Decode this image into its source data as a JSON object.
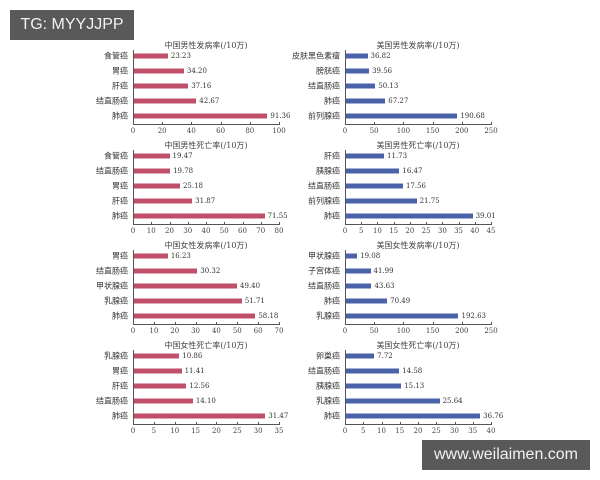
{
  "watermarks": {
    "top_left": "TG: MYYJJPP",
    "bottom_right": "www.weilaimen.com"
  },
  "colors": {
    "china_bar": "#c0506a",
    "us_bar": "#4a62a8"
  },
  "chart_data": [
    {
      "type": "bar",
      "orientation": "horizontal",
      "title": "中国男性发病率(/10万)",
      "categories": [
        "食管癌",
        "胃癌",
        "肝癌",
        "结直肠癌",
        "肺癌"
      ],
      "values": [
        23.23,
        34.2,
        37.16,
        42.67,
        91.36
      ],
      "value_labels": [
        "23.23",
        "34.20",
        "37.16",
        "42.67",
        "91.36"
      ],
      "xlim": [
        0,
        100
      ],
      "xticks": [
        "0",
        "20",
        "40",
        "60",
        "80",
        "100"
      ],
      "color": "#c0506a"
    },
    {
      "type": "bar",
      "orientation": "horizontal",
      "title": "美国男性发病率(/10万)",
      "categories": [
        "皮肤黑色素瘤",
        "膀胱癌",
        "结直肠癌",
        "肺癌",
        "前列腺癌"
      ],
      "values": [
        36.82,
        39.56,
        50.13,
        67.27,
        190.68
      ],
      "value_labels": [
        "36.82",
        "39.56",
        "50.13",
        "67.27",
        "190.68"
      ],
      "xlim": [
        0,
        250
      ],
      "xticks": [
        "0",
        "50",
        "100",
        "150",
        "200",
        "250"
      ],
      "color": "#4a62a8"
    },
    {
      "type": "bar",
      "orientation": "horizontal",
      "title": "中国男性死亡率(/10万)",
      "categories": [
        "食管癌",
        "结直肠癌",
        "胃癌",
        "肝癌",
        "肺癌"
      ],
      "values": [
        19.47,
        19.78,
        25.18,
        31.87,
        71.55
      ],
      "value_labels": [
        "19.47",
        "19.78",
        "25.18",
        "31.87",
        "71.55"
      ],
      "xlim": [
        0,
        80
      ],
      "xticks": [
        "0",
        "10",
        "20",
        "30",
        "40",
        "50",
        "60",
        "70",
        "80"
      ],
      "color": "#c0506a"
    },
    {
      "type": "bar",
      "orientation": "horizontal",
      "title": "美国男性死亡率(/10万)",
      "categories": [
        "肝癌",
        "胰腺癌",
        "结直肠癌",
        "前列腺癌",
        "肺癌"
      ],
      "values": [
        11.73,
        16.47,
        17.56,
        21.75,
        39.01
      ],
      "value_labels": [
        "11.73",
        "16.47",
        "17.56",
        "21.75",
        "39.01"
      ],
      "xlim": [
        0,
        45
      ],
      "xticks": [
        "0",
        "5",
        "10",
        "15",
        "20",
        "25",
        "30",
        "35",
        "40",
        "45"
      ],
      "color": "#4a62a8"
    },
    {
      "type": "bar",
      "orientation": "horizontal",
      "title": "中国女性发病率(/10万)",
      "categories": [
        "胃癌",
        "结直肠癌",
        "甲状腺癌",
        "乳腺癌",
        "肺癌"
      ],
      "values": [
        16.23,
        30.32,
        49.4,
        51.71,
        58.18
      ],
      "value_labels": [
        "16.23",
        "30.32",
        "49.40",
        "51.71",
        "58.18"
      ],
      "xlim": [
        0,
        70
      ],
      "xticks": [
        "0",
        "10",
        "20",
        "30",
        "40",
        "50",
        "60",
        "70"
      ],
      "color": "#c0506a"
    },
    {
      "type": "bar",
      "orientation": "horizontal",
      "title": "美国女性发病率(/10万)",
      "categories": [
        "甲状腺癌",
        "子宫体癌",
        "结直肠癌",
        "肺癌",
        "乳腺癌"
      ],
      "values": [
        19.08,
        41.99,
        43.63,
        70.49,
        192.63
      ],
      "value_labels": [
        "19.08",
        "41.99",
        "43.63",
        "70.49",
        "192.63"
      ],
      "xlim": [
        0,
        250
      ],
      "xticks": [
        "0",
        "50",
        "100",
        "150",
        "200",
        "250"
      ],
      "color": "#4a62a8"
    },
    {
      "type": "bar",
      "orientation": "horizontal",
      "title": "中国女性死亡率(/10万)",
      "categories": [
        "乳腺癌",
        "胃癌",
        "肝癌",
        "结直肠癌",
        "肺癌"
      ],
      "values": [
        10.86,
        11.41,
        12.56,
        14.1,
        31.47
      ],
      "value_labels": [
        "10.86",
        "11.41",
        "12.56",
        "14.10",
        "31.47"
      ],
      "xlim": [
        0,
        35
      ],
      "xticks": [
        "0",
        "5",
        "10",
        "15",
        "20",
        "25",
        "30",
        "35"
      ],
      "color": "#c0506a"
    },
    {
      "type": "bar",
      "orientation": "horizontal",
      "title": "美国女性死亡率(/10万)",
      "categories": [
        "卵巢癌",
        "结直肠癌",
        "胰腺癌",
        "乳腺癌",
        "肺癌"
      ],
      "values": [
        7.72,
        14.58,
        15.13,
        25.64,
        36.76
      ],
      "value_labels": [
        "7.72",
        "14.58",
        "15.13",
        "25.64",
        "36.76"
      ],
      "xlim": [
        0,
        40
      ],
      "xticks": [
        "0",
        "5",
        "10",
        "15",
        "20",
        "25",
        "30",
        "35",
        "40"
      ],
      "color": "#4a62a8"
    }
  ]
}
